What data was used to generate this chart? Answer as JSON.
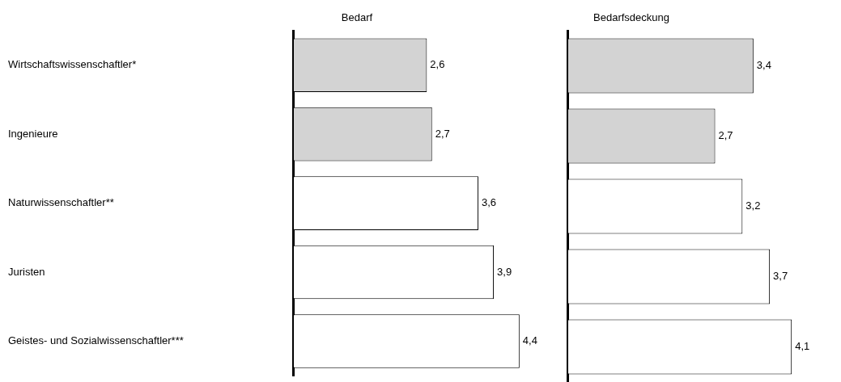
{
  "chart_data": [
    {
      "type": "bar",
      "orientation": "horizontal",
      "title": "Bedarf",
      "categories": [
        "Wirtschaftswissenschaftler*",
        "Ingenieure",
        "Naturwissenschaftler**",
        "Juristen",
        "Geistes- und Sozialwissenschaftler***"
      ],
      "values": [
        2.6,
        2.7,
        3.6,
        3.9,
        4.4
      ],
      "value_labels": [
        "2,6",
        "2,7",
        "3,6",
        "3,9",
        "4,4"
      ],
      "colors": [
        "#d3d3d3",
        "#d3d3d3",
        "#ffffff",
        "#ffffff",
        "#ffffff"
      ],
      "tick_labels": "y",
      "grid": false,
      "legend": false
    },
    {
      "type": "bar",
      "orientation": "horizontal",
      "title": "Bedarfsdeckung",
      "categories": [
        null,
        null,
        null,
        null,
        null
      ],
      "values": [
        3.4,
        2.7,
        3.2,
        3.7,
        4.1
      ],
      "value_labels": [
        "3,4",
        "2,7",
        "3,2",
        "3,7",
        "4,1"
      ],
      "colors": [
        "#d3d3d3",
        "#d3d3d3",
        "#ffffff",
        "#ffffff",
        "#ffffff"
      ],
      "tick_labels": false,
      "grid": false,
      "legend": false
    }
  ]
}
